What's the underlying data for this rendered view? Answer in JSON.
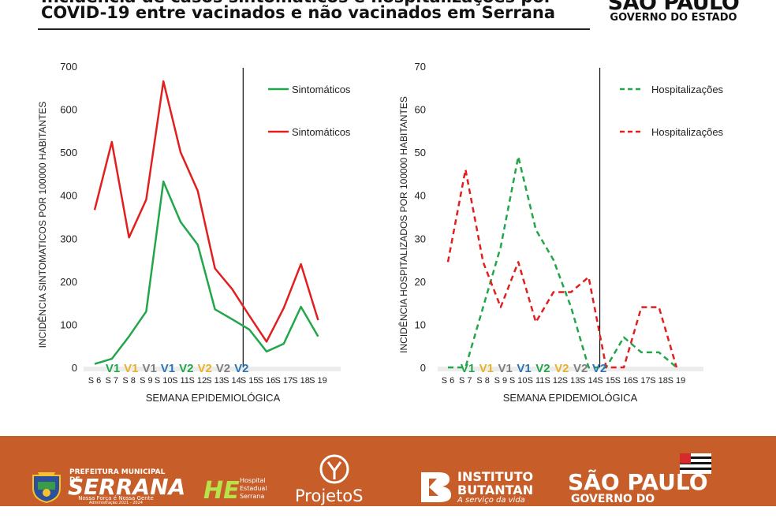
{
  "header": {
    "title_line1": "Incidência de casos sintomáticos e hospitalizações por",
    "title_line2": "COVID-19 entre vacinados e não vacinados em Serrana",
    "gov_name": "SÃO PAULO",
    "gov_sub": "GOVERNO DO ESTADO"
  },
  "colors": {
    "green": "#22a64a",
    "red": "#e11f1f",
    "v1_green": "#22a64a",
    "v1_yellow": "#e8b12a",
    "v1_gray": "#7f7f7f",
    "v1_blue": "#2e74b5",
    "footer_bg": "#c75e2a"
  },
  "vaccination_phases": [
    {
      "label": "V1",
      "color": "#22a64a"
    },
    {
      "label": "V1",
      "color": "#e8b12a"
    },
    {
      "label": "V1",
      "color": "#7f7f7f"
    },
    {
      "label": "V1",
      "color": "#2e74b5"
    },
    {
      "label": "V2",
      "color": "#22a64a"
    },
    {
      "label": "V2",
      "color": "#e8b12a"
    },
    {
      "label": "V2",
      "color": "#7f7f7f"
    },
    {
      "label": "V2",
      "color": "#2e74b5"
    }
  ],
  "chart_data": [
    {
      "type": "line",
      "categories": [
        "S 6",
        "S 7",
        "S 8",
        "S 9",
        "S 10",
        "S 11",
        "S 12",
        "S 13",
        "S 14",
        "S 15",
        "S 16",
        "S 17",
        "S 18",
        "S 19"
      ],
      "xlabel": "SEMANA EPIDEMIOLÓGICA",
      "ylabel": "INCIDÊNCIA SINTOMATICOS POR 100000 HABITANTES",
      "ylim": [
        0,
        700
      ],
      "yticks": [
        0,
        100,
        200,
        300,
        400,
        500,
        600,
        700
      ],
      "vline_after": "S 14",
      "legend_position": "top-right",
      "series": [
        {
          "name": "Sintomáticos",
          "color": "#22a64a",
          "dash": false,
          "values": [
            8,
            20,
            72,
            130,
            432,
            338,
            285,
            135,
            112,
            88,
            37,
            55,
            141,
            72
          ]
        },
        {
          "name": "Sintomáticos",
          "color": "#e11f1f",
          "dash": false,
          "values": [
            366,
            524,
            302,
            390,
            665,
            500,
            410,
            230,
            182,
            120,
            60,
            138,
            240,
            110
          ]
        }
      ]
    },
    {
      "type": "line",
      "categories": [
        "S 6",
        "S 7",
        "S 8",
        "S 9",
        "S 10",
        "S 11",
        "S 12",
        "S 13",
        "S 14",
        "S 15",
        "S 16",
        "S 17",
        "S 18",
        "S 19"
      ],
      "xlabel": "SEMANA EPIDEMIOLÓGICA",
      "ylabel": "INCIDÊNCIA HOSPITALIZADOS POR 100000 HABITANTES",
      "ylim": [
        0,
        70
      ],
      "yticks": [
        0,
        10,
        20,
        30,
        40,
        50,
        60,
        70
      ],
      "vline_after": "S 14",
      "legend_position": "top-right",
      "series": [
        {
          "name": "Hospitalizações",
          "color": "#22a64a",
          "dash": true,
          "values": [
            0,
            0,
            14,
            28,
            49,
            32,
            25,
            14,
            0,
            0,
            7,
            3.5,
            3.5,
            0
          ]
        },
        {
          "name": "Hospitalizações",
          "color": "#e11f1f",
          "dash": true,
          "values": [
            24.5,
            46,
            24.5,
            14,
            24.5,
            10.5,
            17.5,
            17.5,
            21,
            0,
            0,
            14,
            14,
            0
          ]
        }
      ]
    }
  ],
  "footer": {
    "serrana_top": "PREFEITURA MUNICIPAL DE",
    "serrana_name": "SERRANA",
    "serrana_sub": "Nossa Força é Nossa Gente",
    "serrana_admin": "Administração 2021 - 2024",
    "he_mark": "HE",
    "he_name1": "Hospital",
    "he_name2": "Estadual",
    "he_name3": "Serrana",
    "projeto": "ProjetoS",
    "butantan1": "INSTITUTO",
    "butantan2": "BUTANTAN",
    "butantan3": "A serviço da vida",
    "sp1": "SÃO PAULO",
    "sp2": "GOVERNO DO ESTADO"
  }
}
